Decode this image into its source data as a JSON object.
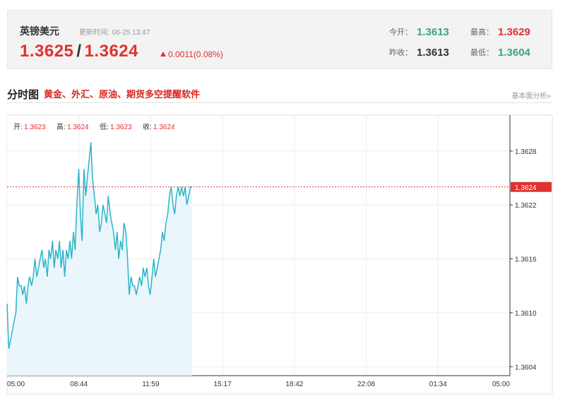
{
  "quote": {
    "name": "英镑美元",
    "update_label": "更新时间:",
    "update_time": "06-25 13:47",
    "bid": "1.3625",
    "ask": "1.3624",
    "change": "0.0011(0.08%)",
    "open_label": "今开：",
    "open": "1.3613",
    "high_label": "最高：",
    "high": "1.3629",
    "prev_close_label": "昨收：",
    "prev_close": "1.3613",
    "low_label": "最低：",
    "low": "1.3604"
  },
  "section": {
    "title": "分时图",
    "subtitle": "黄金、外汇、原油、期货多空提醒软件",
    "link": "基本面分析»"
  },
  "ohlc_readout": {
    "open_label": "开:",
    "open": "1.3623",
    "high_label": "高:",
    "high": "1.3624",
    "low_label": "低:",
    "low": "1.3623",
    "close_label": "收:",
    "close": "1.3624"
  },
  "colors": {
    "line": "#2bb5c8",
    "fill": "#eaf6fb",
    "up": "#e0322f",
    "down": "#3aa57a"
  },
  "chart_data": {
    "type": "area",
    "x_ticks": [
      "05:00",
      "08:44",
      "11:59",
      "15:17",
      "18:42",
      "22:08",
      "01:34",
      "05:00"
    ],
    "y_ticks": [
      "1.3628",
      "1.3622",
      "1.3616",
      "1.3610",
      "1.3604"
    ],
    "ylim": [
      1.3603,
      1.3632
    ],
    "x_range_hours": [
      0,
      24
    ],
    "x_start": "05:00",
    "current_price": "1.3624",
    "grid": true,
    "series": [
      {
        "x": [
          0,
          0.08,
          0.17,
          0.25,
          0.33,
          0.42,
          0.5,
          0.58,
          0.67,
          0.75,
          0.83,
          0.92,
          1.0,
          1.08,
          1.17,
          1.25,
          1.33,
          1.42,
          1.5,
          1.58,
          1.67,
          1.75,
          1.83,
          1.92,
          2.0,
          2.08,
          2.17,
          2.25,
          2.33,
          2.42,
          2.5,
          2.58,
          2.67,
          2.75,
          2.83,
          2.92,
          3.0,
          3.08,
          3.17,
          3.25,
          3.33,
          3.42,
          3.5,
          3.58,
          3.67,
          3.75,
          3.83,
          3.92,
          4.0,
          4.08,
          4.17,
          4.25,
          4.33,
          4.42,
          4.5,
          4.58,
          4.67,
          4.75,
          4.83,
          4.92,
          5.0,
          5.08,
          5.17,
          5.25,
          5.33,
          5.42,
          5.5,
          5.58,
          5.67,
          5.75,
          5.83,
          5.92,
          6.0,
          6.08,
          6.17,
          6.25,
          6.33,
          6.42,
          6.5,
          6.58,
          6.67,
          6.75,
          6.83,
          6.92,
          7.0,
          7.08,
          7.17,
          7.25,
          7.33,
          7.42,
          7.5,
          7.58,
          7.67,
          7.75,
          7.83,
          7.92,
          8.0,
          8.08,
          8.17,
          8.25,
          8.33,
          8.42,
          8.5,
          8.58,
          8.67,
          8.75,
          8.83
        ],
        "y": [
          1.3611,
          1.3606,
          1.3607,
          1.3608,
          1.3609,
          1.361,
          1.3614,
          1.3613,
          1.3613,
          1.3612,
          1.3613,
          1.3611,
          1.3613,
          1.3614,
          1.3613,
          1.3614,
          1.3616,
          1.3614,
          1.3615,
          1.3616,
          1.3617,
          1.3615,
          1.3616,
          1.3614,
          1.3617,
          1.3616,
          1.3618,
          1.3615,
          1.3617,
          1.3616,
          1.3618,
          1.3615,
          1.3617,
          1.3614,
          1.3617,
          1.3616,
          1.3618,
          1.3616,
          1.3619,
          1.3617,
          1.3622,
          1.3626,
          1.3621,
          1.3618,
          1.3626,
          1.3623,
          1.3625,
          1.3627,
          1.3629,
          1.3625,
          1.3623,
          1.3621,
          1.3622,
          1.3619,
          1.362,
          1.3622,
          1.3621,
          1.362,
          1.3623,
          1.3621,
          1.362,
          1.3619,
          1.3617,
          1.3619,
          1.3616,
          1.3618,
          1.3617,
          1.362,
          1.3619,
          1.3616,
          1.3612,
          1.3614,
          1.3613,
          1.3613,
          1.3612,
          1.3613,
          1.3614,
          1.3613,
          1.3615,
          1.3614,
          1.3615,
          1.3613,
          1.3612,
          1.3614,
          1.3616,
          1.3614,
          1.3615,
          1.3616,
          1.3617,
          1.3619,
          1.3618,
          1.362,
          1.3621,
          1.3623,
          1.3624,
          1.3622,
          1.3621,
          1.3623,
          1.3624,
          1.3623,
          1.3624,
          1.3623,
          1.3624,
          1.3622,
          1.3623,
          1.3624,
          1.3624
        ]
      }
    ]
  }
}
